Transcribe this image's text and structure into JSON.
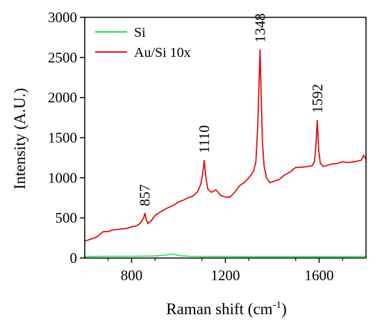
{
  "chart_data": {
    "type": "line",
    "xlabel": "Raman shift (cm",
    "xlabel_superscript": "-1",
    "xlabel_suffix": ")",
    "ylabel": "Intensity (A.U.)",
    "xlim": [
      600,
      1800
    ],
    "ylim": [
      0,
      3000
    ],
    "xticks": [
      800,
      1200,
      1600
    ],
    "xtick_labels": [
      "800",
      "1200",
      "1600"
    ],
    "yticks": [
      0,
      500,
      1000,
      1500,
      2000,
      2500,
      3000
    ],
    "ytick_labels": [
      "0",
      "500",
      "1000",
      "1500",
      "2000",
      "2500",
      "3000"
    ],
    "grid": false,
    "legend_position": "top-left",
    "series": [
      {
        "name": "Si",
        "color": "#22dd55",
        "x": [
          600,
          700,
          800,
          900,
          940,
          960,
          975,
          990,
          1010,
          1050,
          1100,
          1200,
          1300,
          1400,
          1500,
          1600,
          1700,
          1800
        ],
        "y": [
          20,
          22,
          22,
          25,
          35,
          45,
          50,
          40,
          28,
          22,
          20,
          20,
          18,
          18,
          18,
          18,
          18,
          20
        ]
      },
      {
        "name": "Au/Si 10x",
        "color": "#dd1111",
        "x": [
          600,
          620,
          650,
          680,
          700,
          720,
          750,
          780,
          800,
          820,
          835,
          845,
          852,
          857,
          862,
          870,
          885,
          900,
          920,
          950,
          980,
          1000,
          1020,
          1040,
          1060,
          1080,
          1095,
          1103,
          1110,
          1117,
          1125,
          1140,
          1160,
          1180,
          1200,
          1220,
          1240,
          1260,
          1280,
          1300,
          1320,
          1330,
          1338,
          1343,
          1348,
          1352,
          1358,
          1365,
          1375,
          1390,
          1410,
          1430,
          1450,
          1480,
          1500,
          1520,
          1550,
          1570,
          1580,
          1586,
          1592,
          1598,
          1605,
          1620,
          1650,
          1680,
          1700,
          1720,
          1750,
          1780,
          1790,
          1800
        ],
        "y": [
          210,
          230,
          260,
          330,
          330,
          350,
          360,
          370,
          390,
          400,
          430,
          470,
          510,
          560,
          480,
          430,
          470,
          530,
          570,
          620,
          660,
          700,
          720,
          750,
          770,
          820,
          920,
          1050,
          1220,
          1000,
          860,
          820,
          850,
          780,
          760,
          760,
          820,
          900,
          940,
          1000,
          1080,
          1200,
          1650,
          2150,
          2600,
          2100,
          1450,
          1150,
          1000,
          940,
          960,
          980,
          1030,
          1080,
          1130,
          1130,
          1140,
          1150,
          1200,
          1400,
          1720,
          1350,
          1180,
          1140,
          1170,
          1180,
          1200,
          1190,
          1200,
          1220,
          1280,
          1230
        ]
      }
    ],
    "annotations": [
      {
        "text": "857",
        "x": 857,
        "y": 560
      },
      {
        "text": "1110",
        "x": 1110,
        "y": 1220
      },
      {
        "text": "1348",
        "x": 1348,
        "y": 2600
      },
      {
        "text": "1592",
        "x": 1592,
        "y": 1720
      }
    ]
  }
}
